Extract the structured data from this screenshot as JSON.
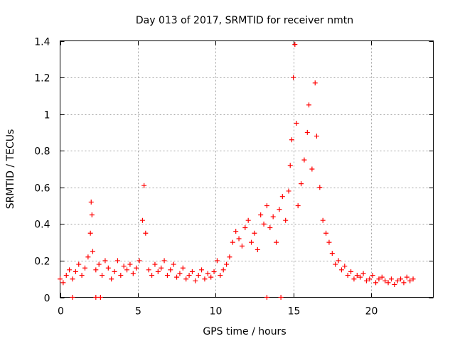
{
  "chart_data": {
    "type": "scatter",
    "title": "Day 013 of 2017, SRMTID for receiver nmtn",
    "xlabel": "GPS time / hours",
    "ylabel": "SRMTID / TECUs",
    "xlim": [
      0,
      24
    ],
    "ylim": [
      0,
      1.4
    ],
    "grid": true,
    "color": "#ff0000",
    "xticks": [
      0,
      5,
      10,
      15,
      20
    ],
    "xtick_labels": [
      "0",
      "5",
      "10",
      "15",
      "20"
    ],
    "yticks": [
      0,
      0.2,
      0.4,
      0.6,
      0.8,
      1.0,
      1.2,
      1.4
    ],
    "ytick_labels": [
      "0",
      "0.2",
      "0.4",
      "0.6",
      "0.8",
      "1",
      "1.2",
      "1.4"
    ],
    "series": [
      {
        "name": "SRMTID",
        "marker": "+",
        "x": [
          0.0,
          0.2,
          0.4,
          0.6,
          0.8,
          1.0,
          1.2,
          1.4,
          1.6,
          1.8,
          1.95,
          2.0,
          2.05,
          2.1,
          2.3,
          2.5,
          2.7,
          2.9,
          3.1,
          3.3,
          3.5,
          3.7,
          3.9,
          4.1,
          4.3,
          4.5,
          4.7,
          4.9,
          5.1,
          5.3,
          5.4,
          5.5,
          5.7,
          5.9,
          6.1,
          6.3,
          6.5,
          6.7,
          6.9,
          7.1,
          7.3,
          7.5,
          7.7,
          7.9,
          8.1,
          8.3,
          8.5,
          8.7,
          8.9,
          9.1,
          9.3,
          9.5,
          9.7,
          9.9,
          10.1,
          10.3,
          10.5,
          10.7,
          10.9,
          11.1,
          11.3,
          11.5,
          11.7,
          11.9,
          12.1,
          12.3,
          12.5,
          12.7,
          12.9,
          13.1,
          13.3,
          13.5,
          13.7,
          13.9,
          14.1,
          14.3,
          14.5,
          14.7,
          14.8,
          14.9,
          15.0,
          15.1,
          15.2,
          15.3,
          15.5,
          15.7,
          15.9,
          16.0,
          16.2,
          16.4,
          16.5,
          16.7,
          16.9,
          17.1,
          17.3,
          17.5,
          17.7,
          17.9,
          18.1,
          18.3,
          18.5,
          18.7,
          18.9,
          19.1,
          19.3,
          19.5,
          19.7,
          19.9,
          20.1,
          20.3,
          20.5,
          20.7,
          20.9,
          21.1,
          21.3,
          21.5,
          21.7,
          21.9,
          22.1,
          22.3,
          22.5,
          22.7,
          0.8,
          2.3,
          2.6,
          13.3,
          14.2
        ],
        "y": [
          0.1,
          0.08,
          0.12,
          0.15,
          0.1,
          0.14,
          0.18,
          0.12,
          0.16,
          0.22,
          0.35,
          0.52,
          0.45,
          0.25,
          0.15,
          0.18,
          0.12,
          0.2,
          0.16,
          0.1,
          0.14,
          0.2,
          0.12,
          0.17,
          0.15,
          0.18,
          0.13,
          0.16,
          0.2,
          0.42,
          0.61,
          0.35,
          0.15,
          0.12,
          0.18,
          0.14,
          0.16,
          0.2,
          0.12,
          0.15,
          0.18,
          0.11,
          0.13,
          0.16,
          0.1,
          0.12,
          0.14,
          0.09,
          0.12,
          0.15,
          0.1,
          0.13,
          0.11,
          0.14,
          0.2,
          0.12,
          0.15,
          0.18,
          0.22,
          0.3,
          0.36,
          0.32,
          0.28,
          0.38,
          0.42,
          0.3,
          0.35,
          0.26,
          0.45,
          0.4,
          0.5,
          0.38,
          0.44,
          0.3,
          0.48,
          0.55,
          0.42,
          0.58,
          0.72,
          0.86,
          1.2,
          1.38,
          0.95,
          0.5,
          0.62,
          0.75,
          0.9,
          1.05,
          0.7,
          1.17,
          0.88,
          0.6,
          0.42,
          0.35,
          0.3,
          0.24,
          0.18,
          0.2,
          0.15,
          0.17,
          0.12,
          0.14,
          0.1,
          0.12,
          0.11,
          0.13,
          0.09,
          0.1,
          0.12,
          0.08,
          0.1,
          0.11,
          0.09,
          0.08,
          0.1,
          0.07,
          0.09,
          0.1,
          0.08,
          0.11,
          0.09,
          0.1,
          0.0,
          0.0,
          0.0,
          0.0,
          0.0
        ]
      }
    ]
  }
}
